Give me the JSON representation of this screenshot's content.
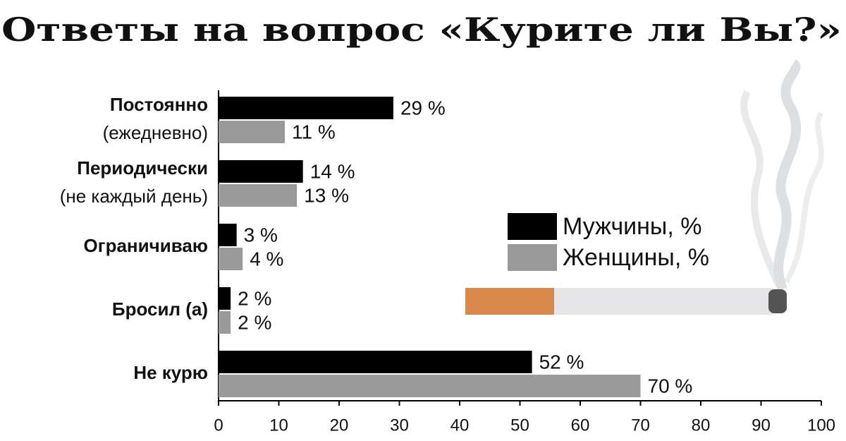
{
  "chart_data": {
    "type": "hbar",
    "title": "Ответы на вопрос «Курите ли Вы?»",
    "categories": [
      "Постоянно",
      "Периодически",
      "Ограничиваю",
      "Бросил (а)",
      "Не курю"
    ],
    "category_subtitles": [
      "(ежедневно)",
      "(не каждый день)",
      null,
      null,
      null
    ],
    "series": [
      {
        "name": "Мужчины, %",
        "color": "#000000",
        "values": [
          29,
          14,
          3,
          2,
          52
        ],
        "value_labels": [
          "29 %",
          "14 %",
          "3 %",
          "2 %",
          "52 %"
        ]
      },
      {
        "name": "Женщины, %",
        "color": "#9a9a9a",
        "values": [
          11,
          13,
          4,
          2,
          70
        ],
        "value_labels": [
          "11 %",
          "13 %",
          "4 %",
          "2 %",
          "70 %"
        ]
      }
    ],
    "xlim": [
      0,
      100
    ],
    "xticks": [
      0,
      10,
      20,
      30,
      40,
      50,
      60,
      70,
      80,
      90,
      100
    ],
    "grid": false
  }
}
